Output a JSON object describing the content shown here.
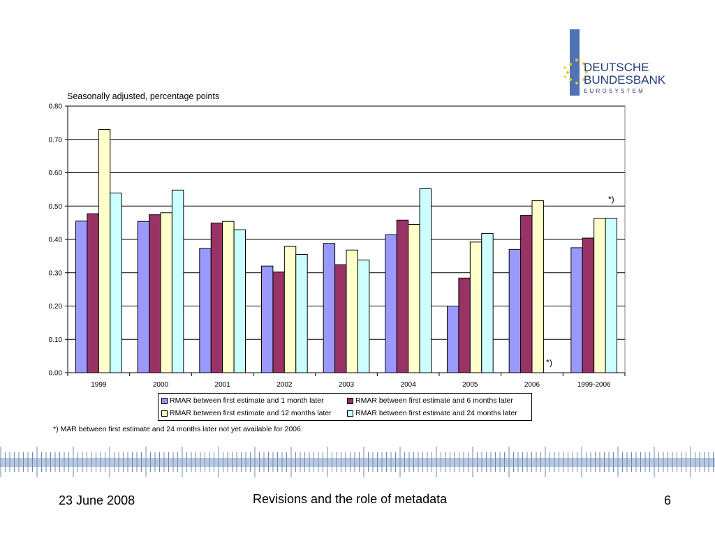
{
  "logo": {
    "line1": "DEUTSCHE",
    "line2": "BUNDESBANK",
    "line3": "EUROSYSTEM",
    "colors": {
      "bar": "#4f73b4",
      "stars": "#f0c419",
      "text": "#1f3c7a"
    }
  },
  "chart_data": {
    "type": "bar",
    "title": "Seasonally adjusted, percentage points",
    "categories": [
      "1999",
      "2000",
      "2001",
      "2002",
      "2003",
      "2004",
      "2005",
      "2006",
      "1999-2006"
    ],
    "series": [
      {
        "name": "RMAR between first estimate and 1 month later",
        "color": "#9999ff",
        "values": [
          0.455,
          0.454,
          0.373,
          0.32,
          0.388,
          0.414,
          0.2,
          0.37,
          0.375
        ]
      },
      {
        "name": "RMAR between first estimate and 6 months later",
        "color": "#993366",
        "values": [
          0.477,
          0.474,
          0.449,
          0.302,
          0.324,
          0.458,
          0.284,
          0.472,
          0.404
        ]
      },
      {
        "name": "RMAR between first estimate and 12 months later",
        "color": "#ffffcc",
        "values": [
          0.73,
          0.48,
          0.454,
          0.379,
          0.368,
          0.445,
          0.392,
          0.516,
          0.463
        ]
      },
      {
        "name": "RMAR between first estimate and 24 months later",
        "color": "#ccffff",
        "values": [
          0.539,
          0.548,
          0.429,
          0.355,
          0.338,
          0.552,
          0.418,
          null,
          0.463
        ]
      }
    ],
    "yticks": [
      "0.00",
      "0.10",
      "0.20",
      "0.30",
      "0.40",
      "0.50",
      "0.60",
      "0.70",
      "0.80"
    ],
    "ylim": [
      0,
      0.8
    ],
    "grid": true,
    "legend_position": "bottom",
    "annotations": [
      {
        "text": "*)",
        "category": "1999-2006",
        "value": 0.52
      },
      {
        "text": "*)",
        "category": "2006",
        "value": 0.03
      }
    ],
    "footnote": "*) MAR between first estimate and 24 months later not yet available for 2006."
  },
  "footer": {
    "date": "23 June 2008",
    "title": "Revisions and the role of metadata",
    "page": "6"
  }
}
